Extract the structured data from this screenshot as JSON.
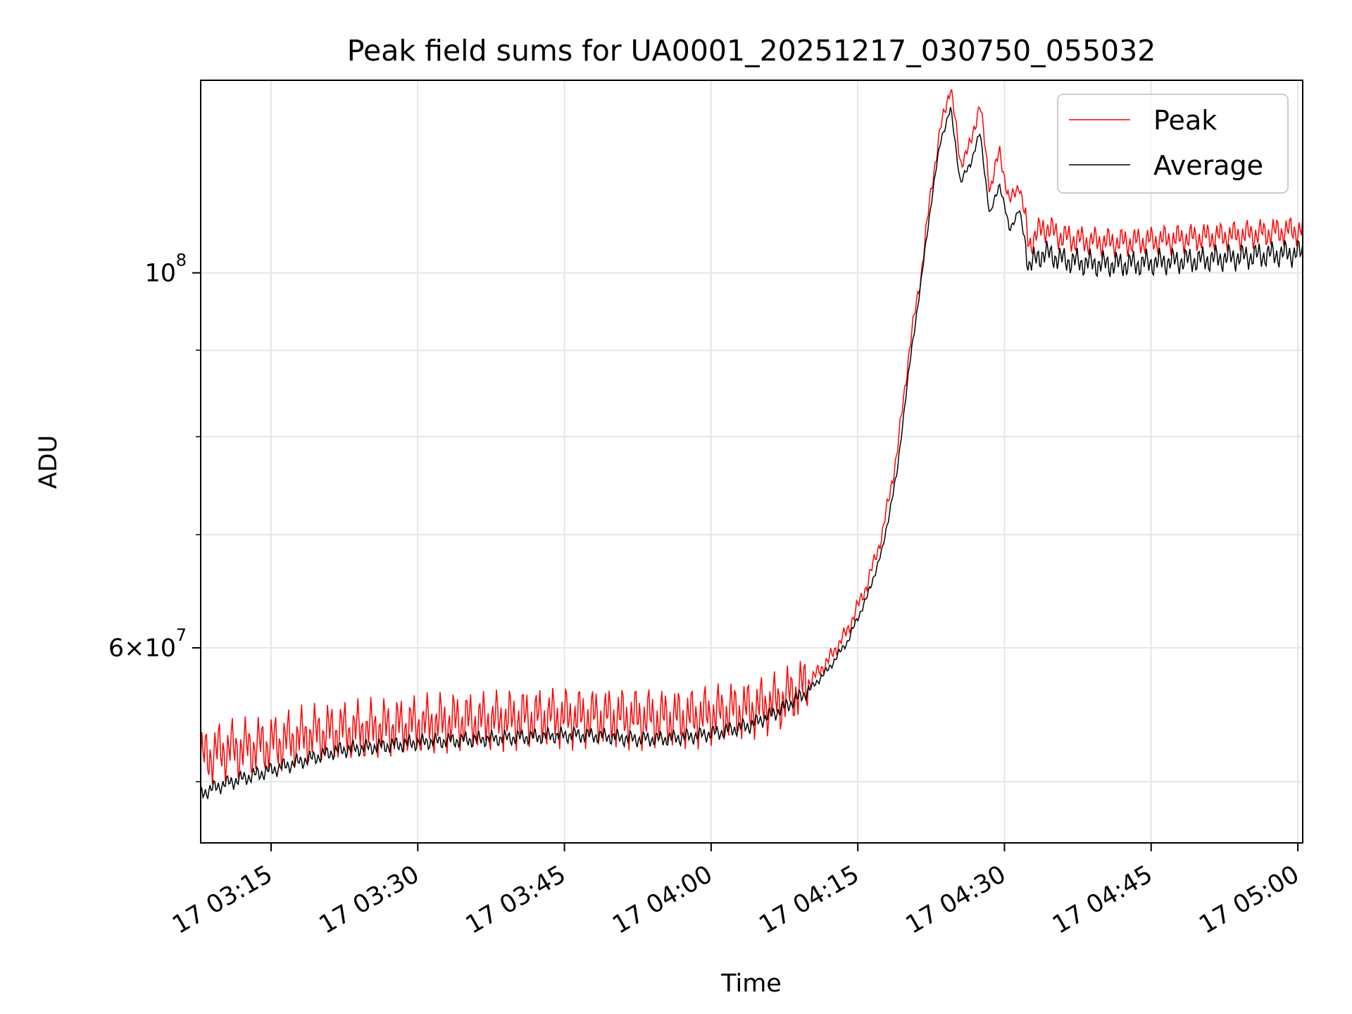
{
  "chart_data": {
    "type": "line",
    "title": "Peak field sums for UA0001_20251217_030750_055032",
    "xlabel": "Time",
    "ylabel": "ADU",
    "yscale": "log",
    "x_start": "17 03:07:50",
    "x_end": "17 05:00:30",
    "xlim_minutes": [
      427.8,
      540.5
    ],
    "ylim": [
      46000000,
      130000000
    ],
    "x_ticks": [
      {
        "minute": 435,
        "label": "17 03:15"
      },
      {
        "minute": 450,
        "label": "17 03:30"
      },
      {
        "minute": 465,
        "label": "17 03:45"
      },
      {
        "minute": 480,
        "label": "17 04:00"
      },
      {
        "minute": 495,
        "label": "17 04:15"
      },
      {
        "minute": 510,
        "label": "17 04:30"
      },
      {
        "minute": 525,
        "label": "17 04:45"
      },
      {
        "minute": 540,
        "label": "17 05:00"
      }
    ],
    "y_major_ticks": [
      {
        "value": 60000000,
        "mantissa": "6",
        "exponent": "7"
      },
      {
        "value": 100000000,
        "mantissa": "",
        "exponent": "8"
      }
    ],
    "y_minor_ticks": [
      50000000,
      70000000,
      80000000,
      90000000
    ],
    "grid": true,
    "legend_position": "top-right",
    "series": [
      {
        "name": "Peak",
        "color": "#ff0000",
        "points": [
          [
            427.8,
            51.6
          ],
          [
            430,
            52.2
          ],
          [
            433,
            52.4
          ],
          [
            436,
            52.8
          ],
          [
            439,
            53.3
          ],
          [
            442,
            53.6
          ],
          [
            445,
            53.7
          ],
          [
            448,
            53.9
          ],
          [
            451,
            54.1
          ],
          [
            454,
            54.3
          ],
          [
            457,
            54.3
          ],
          [
            460,
            54.5
          ],
          [
            463,
            54.6
          ],
          [
            466,
            54.6
          ],
          [
            469,
            54.6
          ],
          [
            472,
            54.6
          ],
          [
            475,
            54.5
          ],
          [
            478,
            54.6
          ],
          [
            481,
            54.9
          ],
          [
            484,
            55.2
          ],
          [
            487,
            55.8
          ],
          [
            490,
            57.2
          ],
          [
            492,
            59.0
          ],
          [
            494,
            61.5
          ],
          [
            496,
            65.5
          ],
          [
            497.5,
            70.0
          ],
          [
            499,
            78.0
          ],
          [
            500.5,
            92.0
          ],
          [
            501.5,
            100.0
          ],
          [
            502.5,
            112.0
          ],
          [
            503.5,
            122.0
          ],
          [
            504.5,
            129.0
          ],
          [
            505.5,
            116.0
          ],
          [
            506.5,
            119.0
          ],
          [
            507.5,
            126.0
          ],
          [
            508.5,
            112.0
          ],
          [
            509.5,
            118.0
          ],
          [
            510.5,
            110.0
          ],
          [
            511.5,
            113.0
          ],
          [
            512.5,
            104.0
          ],
          [
            514,
            106.5
          ],
          [
            516,
            105.0
          ],
          [
            518,
            104.5
          ],
          [
            520,
            104.3
          ],
          [
            522,
            104.3
          ],
          [
            524,
            104.4
          ],
          [
            526,
            104.6
          ],
          [
            528,
            104.8
          ],
          [
            530,
            105.0
          ],
          [
            532,
            105.1
          ],
          [
            534,
            105.3
          ],
          [
            536,
            105.5
          ],
          [
            538,
            105.8
          ],
          [
            540.5,
            106.0
          ]
        ]
      },
      {
        "name": "Average",
        "color": "#000000",
        "points": [
          [
            427.8,
            49.2
          ],
          [
            430,
            49.8
          ],
          [
            433,
            50.4
          ],
          [
            436,
            51.0
          ],
          [
            439,
            51.6
          ],
          [
            442,
            52.2
          ],
          [
            445,
            52.4
          ],
          [
            448,
            52.6
          ],
          [
            451,
            52.8
          ],
          [
            454,
            52.9
          ],
          [
            457,
            53.0
          ],
          [
            460,
            53.1
          ],
          [
            463,
            53.2
          ],
          [
            466,
            53.3
          ],
          [
            469,
            53.2
          ],
          [
            472,
            53.0
          ],
          [
            475,
            53.0
          ],
          [
            478,
            53.2
          ],
          [
            481,
            53.5
          ],
          [
            484,
            54.0
          ],
          [
            487,
            55.1
          ],
          [
            490,
            56.6
          ],
          [
            492,
            58.3
          ],
          [
            494,
            60.6
          ],
          [
            496,
            64.4
          ],
          [
            497.5,
            68.5
          ],
          [
            499,
            76.0
          ],
          [
            500.5,
            90.0
          ],
          [
            501.5,
            99.0
          ],
          [
            502.5,
            110.0
          ],
          [
            503.5,
            120.0
          ],
          [
            504.5,
            125.0
          ],
          [
            505.5,
            113.0
          ],
          [
            506.5,
            116.0
          ],
          [
            507.5,
            121.0
          ],
          [
            508.5,
            108.0
          ],
          [
            509.5,
            113.0
          ],
          [
            510.5,
            106.0
          ],
          [
            511.5,
            109.0
          ],
          [
            512.5,
            101.0
          ],
          [
            514,
            102.8
          ],
          [
            516,
            101.8
          ],
          [
            518,
            101.4
          ],
          [
            520,
            101.2
          ],
          [
            522,
            101.2
          ],
          [
            524,
            101.3
          ],
          [
            526,
            101.5
          ],
          [
            528,
            101.7
          ],
          [
            530,
            101.8
          ],
          [
            532,
            102.0
          ],
          [
            534,
            102.2
          ],
          [
            536,
            102.4
          ],
          [
            538,
            102.6
          ],
          [
            540.5,
            102.8
          ]
        ]
      }
    ]
  }
}
